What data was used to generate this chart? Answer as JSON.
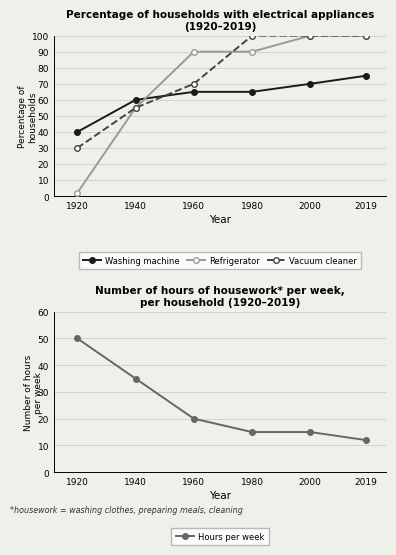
{
  "years": [
    1920,
    1940,
    1960,
    1980,
    2000,
    2019
  ],
  "washing_machine": [
    40,
    60,
    65,
    65,
    70,
    75
  ],
  "refrigerator": [
    2,
    55,
    90,
    90,
    100,
    100
  ],
  "vacuum_cleaner": [
    30,
    55,
    70,
    100,
    100,
    100
  ],
  "hours_per_week": [
    50,
    35,
    20,
    15,
    15,
    12
  ],
  "title1": "Percentage of households with electrical appliances\n(1920–2019)",
  "ylabel1": "Percentage of\nhouseholds",
  "xlabel1": "Year",
  "ylim1": [
    0,
    100
  ],
  "yticks1": [
    0,
    10,
    20,
    30,
    40,
    50,
    60,
    70,
    80,
    90,
    100
  ],
  "title2": "Number of hours of housework* per week,\nper household (1920–2019)",
  "ylabel2": "Number of hours\nper week",
  "xlabel2": "Year",
  "ylim2": [
    0,
    60
  ],
  "yticks2": [
    0,
    10,
    20,
    30,
    40,
    50,
    60
  ],
  "footnote": "*housework = washing clothes, preparing meals, cleaning",
  "line_color_wm": "#1a1a1a",
  "line_color_ref": "#999999",
  "line_color_vc": "#444444",
  "line_color_hw": "#666666",
  "bg_color": "#f0f0eb"
}
